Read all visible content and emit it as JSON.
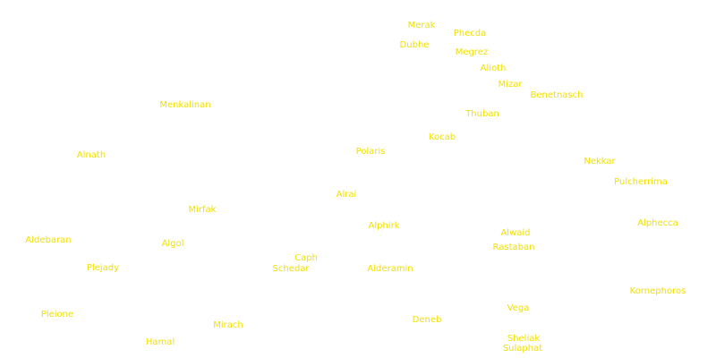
{
  "colors": {
    "background": "#ffffff",
    "label": "#f2e000"
  },
  "stars": [
    {
      "id": "merak",
      "name": "Merak"
    },
    {
      "id": "phecda",
      "name": "Phecda"
    },
    {
      "id": "dubhe",
      "name": "Dubhe"
    },
    {
      "id": "megrez",
      "name": "Megrez"
    },
    {
      "id": "alioth",
      "name": "Alioth"
    },
    {
      "id": "mizar",
      "name": "Mizar"
    },
    {
      "id": "benetnasch",
      "name": "Benetnasch"
    },
    {
      "id": "menkalinan",
      "name": "Menkalinan"
    },
    {
      "id": "thuban",
      "name": "Thuban"
    },
    {
      "id": "kocab",
      "name": "Kocab"
    },
    {
      "id": "polaris",
      "name": "Polaris"
    },
    {
      "id": "alnath",
      "name": "Alnath"
    },
    {
      "id": "nekkar",
      "name": "Nekkar"
    },
    {
      "id": "pulcherrima",
      "name": "Pulcherrima"
    },
    {
      "id": "alrai",
      "name": "Alrai"
    },
    {
      "id": "mirfak",
      "name": "Mirfak"
    },
    {
      "id": "alphirk",
      "name": "Alphirk"
    },
    {
      "id": "alphecca",
      "name": "Alphecca"
    },
    {
      "id": "alwaid",
      "name": "Alwaid"
    },
    {
      "id": "aldebaran",
      "name": "Aldebaran"
    },
    {
      "id": "algol",
      "name": "Algol"
    },
    {
      "id": "rastaban",
      "name": "Rastaban"
    },
    {
      "id": "caph",
      "name": "Caph"
    },
    {
      "id": "plejady",
      "name": "Plejady"
    },
    {
      "id": "schedar",
      "name": "Schedar"
    },
    {
      "id": "alderamin",
      "name": "Alderamin"
    },
    {
      "id": "kornephoros",
      "name": "Kornephoros"
    },
    {
      "id": "vega",
      "name": "Vega"
    },
    {
      "id": "pleione",
      "name": "Pleione"
    },
    {
      "id": "deneb",
      "name": "Deneb"
    },
    {
      "id": "mirach",
      "name": "Mirach"
    },
    {
      "id": "sheliak",
      "name": "Sheliak"
    },
    {
      "id": "hamal",
      "name": "Hamal"
    },
    {
      "id": "sulaphat",
      "name": "Sulaphat"
    }
  ]
}
